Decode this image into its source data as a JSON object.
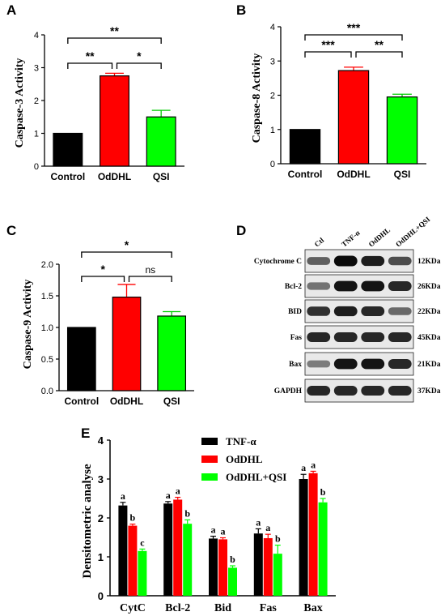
{
  "colors": {
    "control": "#000000",
    "odhl": "#ff0000",
    "qsi": "#00ff00",
    "error_odhl": "#ff0000",
    "error_qsi": "#00cc00"
  },
  "panel_a": {
    "label": "A",
    "chart_data": {
      "type": "bar",
      "categories": [
        "Control",
        "OdDHL",
        "QSI"
      ],
      "values": [
        1.0,
        2.75,
        1.5
      ],
      "errors": [
        0,
        0.08,
        0.2
      ],
      "ylabel": "Caspase-3 Activity",
      "ylim": [
        0,
        4
      ],
      "yticks": [
        "0",
        "1",
        "2",
        "3",
        "4"
      ],
      "comparisons": [
        {
          "from": 0,
          "to": 1,
          "label": "**"
        },
        {
          "from": 1,
          "to": 2,
          "label": "*"
        },
        {
          "from": 0,
          "to": 2,
          "label": "**"
        }
      ]
    }
  },
  "panel_b": {
    "label": "B",
    "chart_data": {
      "type": "bar",
      "categories": [
        "Control",
        "OdDHL",
        "QSI"
      ],
      "values": [
        1.0,
        2.72,
        1.95
      ],
      "errors": [
        0,
        0.1,
        0.08
      ],
      "ylabel": "Caspase-8 Activity",
      "ylim": [
        0,
        4
      ],
      "yticks": [
        "0",
        "1",
        "2",
        "3",
        "4"
      ],
      "comparisons": [
        {
          "from": 0,
          "to": 1,
          "label": "***"
        },
        {
          "from": 1,
          "to": 2,
          "label": "**"
        },
        {
          "from": 0,
          "to": 2,
          "label": "***"
        }
      ]
    }
  },
  "panel_c": {
    "label": "C",
    "chart_data": {
      "type": "bar",
      "categories": [
        "Control",
        "OdDHL",
        "QSI"
      ],
      "values": [
        1.0,
        1.48,
        1.18
      ],
      "errors": [
        0,
        0.2,
        0.07
      ],
      "ylabel": "Caspase-9 Activity",
      "ylim": [
        0,
        2.0
      ],
      "yticks": [
        "0.0",
        "0.5",
        "1.0",
        "1.5",
        "2.0"
      ],
      "comparisons": [
        {
          "from": 0,
          "to": 1,
          "label": "*"
        },
        {
          "from": 1,
          "to": 2,
          "label": "ns"
        },
        {
          "from": 0,
          "to": 2,
          "label": "*"
        }
      ]
    }
  },
  "panel_d": {
    "label": "D",
    "lanes": [
      "Ctl",
      "TNF-α",
      "OdDHL",
      "OdDHL+QSI"
    ],
    "rows": [
      {
        "protein": "Cytochrome C",
        "size": "12KDa",
        "intensity": [
          0.55,
          1.0,
          0.9,
          0.65
        ]
      },
      {
        "protein": "Bcl-2",
        "size": "26KDa",
        "intensity": [
          0.45,
          0.95,
          0.95,
          0.85
        ]
      },
      {
        "protein": "BID",
        "size": "22KDa",
        "intensity": [
          0.8,
          0.9,
          0.85,
          0.5
        ]
      },
      {
        "protein": "Fas",
        "size": "45KDa",
        "intensity": [
          0.85,
          0.85,
          0.85,
          0.85
        ]
      },
      {
        "protein": "Bax",
        "size": "21KDa",
        "intensity": [
          0.4,
          0.95,
          0.95,
          0.85
        ]
      },
      {
        "protein": "GAPDH",
        "size": "37KDa",
        "intensity": [
          0.85,
          0.85,
          0.85,
          0.85
        ]
      }
    ]
  },
  "panel_e": {
    "label": "E",
    "chart_data": {
      "type": "bar",
      "categories": [
        "CytC",
        "Bcl-2",
        "Bid",
        "Fas",
        "Bax"
      ],
      "ylabel": "Densitometric analyse",
      "ylim": [
        0,
        4
      ],
      "yticks": [
        "0",
        "1",
        "2",
        "3",
        "4"
      ],
      "legend_position": "top-right",
      "series": [
        {
          "name": "TNF-α",
          "values": [
            2.32,
            2.37,
            1.47,
            1.6,
            3.0
          ],
          "errors": [
            0.08,
            0.05,
            0.06,
            0.12,
            0.12
          ],
          "letters": [
            "a",
            "a",
            "a",
            "a",
            "a"
          ]
        },
        {
          "name": "OdDHL",
          "values": [
            1.8,
            2.47,
            1.45,
            1.48,
            3.15
          ],
          "errors": [
            0.04,
            0.06,
            0.04,
            0.1,
            0.05
          ],
          "letters": [
            "b",
            "a",
            "a",
            "a",
            "a"
          ]
        },
        {
          "name": "OdDHL+QSI",
          "values": [
            1.15,
            1.85,
            0.72,
            1.08,
            2.4
          ],
          "errors": [
            0.05,
            0.1,
            0.05,
            0.22,
            0.1
          ],
          "letters": [
            "c",
            "b",
            "b",
            "b",
            "b"
          ]
        }
      ]
    }
  }
}
